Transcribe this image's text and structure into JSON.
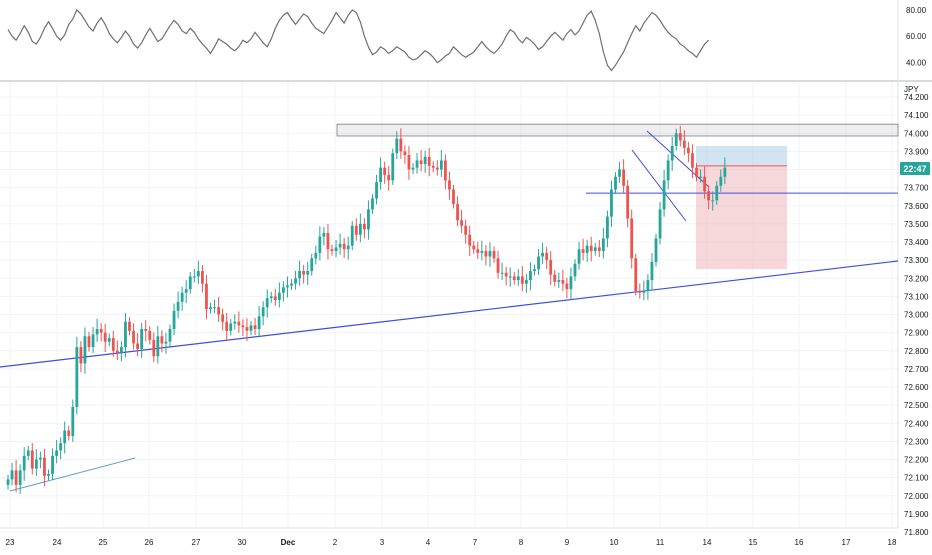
{
  "currency": "JPY",
  "price_badge": {
    "text": "22:47",
    "color": "#26a69a"
  },
  "colors": {
    "up": "#26a69a",
    "down": "#ef5350",
    "trend": "#3f4ce0",
    "oscillator": "#6f6f6f",
    "zone": "#787b86",
    "target": "#9cc3e0",
    "stop": "#efb6bb"
  },
  "chart_data": [
    {
      "type": "line",
      "role": "oscillator",
      "y_ticks": [
        "80.00",
        "60.00",
        "40.00"
      ],
      "ylim": [
        26,
        86
      ],
      "values": [
        65,
        60,
        57,
        62,
        68,
        63,
        56,
        54,
        59,
        66,
        71,
        66,
        60,
        57,
        61,
        69,
        73,
        80,
        77,
        72,
        67,
        64,
        70,
        74,
        69,
        62,
        58,
        55,
        59,
        64,
        60,
        54,
        51,
        55,
        61,
        66,
        61,
        56,
        58,
        63,
        68,
        72,
        69,
        64,
        62,
        66,
        63,
        58,
        54,
        51,
        47,
        52,
        58,
        56,
        54,
        51,
        49,
        52,
        57,
        55,
        58,
        63,
        59,
        55,
        52,
        58,
        66,
        72,
        76,
        78,
        73,
        69,
        73,
        77,
        75,
        70,
        66,
        64,
        62,
        67,
        72,
        78,
        74,
        70,
        76,
        80,
        78,
        71,
        60,
        52,
        46,
        48,
        52,
        50,
        47,
        49,
        52,
        50,
        48,
        44,
        42,
        43,
        46,
        49,
        47,
        44,
        40,
        42,
        45,
        47,
        52,
        49,
        46,
        44,
        46,
        48,
        52,
        56,
        52,
        49,
        47,
        50,
        54,
        60,
        65,
        63,
        58,
        55,
        59,
        57,
        54,
        50,
        52,
        56,
        60,
        63,
        60,
        57,
        62,
        65,
        61,
        64,
        70,
        76,
        79,
        72,
        62,
        48,
        38,
        34,
        38,
        43,
        48,
        55,
        62,
        68,
        64,
        70,
        74,
        78,
        76,
        72,
        67,
        63,
        60,
        58,
        54,
        52,
        49,
        47,
        44,
        49,
        54,
        57
      ]
    },
    {
      "type": "candlestick",
      "role": "price",
      "y_ticks": [
        "74.200",
        "74.100",
        "74.000",
        "73.900",
        "73.800",
        "73.700",
        "73.600",
        "73.500",
        "73.400",
        "73.300",
        "73.200",
        "73.100",
        "73.000",
        "72.900",
        "72.800",
        "72.700",
        "72.600",
        "72.500",
        "72.400",
        "72.300",
        "72.200",
        "72.100",
        "72.000",
        "71.900",
        "71.800"
      ],
      "ylim": [
        71.8,
        74.2
      ],
      "x_ticks": [
        "23",
        "24",
        "25",
        "26",
        "27",
        "30",
        "Dec",
        "2",
        "3",
        "4",
        "7",
        "8",
        "9",
        "10",
        "11",
        "14",
        "15",
        "16",
        "17",
        "18"
      ],
      "closes": [
        72.09,
        72.14,
        72.06,
        72.14,
        72.22,
        72.25,
        72.15,
        72.2,
        72.21,
        72.11,
        72.12,
        72.22,
        72.25,
        72.29,
        72.36,
        72.33,
        72.49,
        72.82,
        72.73,
        72.88,
        72.82,
        72.89,
        72.92,
        72.9,
        72.85,
        72.87,
        72.8,
        72.79,
        72.82,
        72.96,
        72.91,
        72.84,
        72.81,
        72.92,
        72.91,
        72.86,
        72.77,
        72.88,
        72.84,
        72.85,
        72.92,
        73.02,
        73.07,
        73.12,
        73.14,
        73.21,
        73.21,
        73.24,
        73.17,
        73.03,
        73.04,
        73.04,
        73.0,
        72.96,
        72.91,
        72.95,
        72.96,
        72.94,
        72.93,
        72.91,
        72.94,
        72.92,
        72.99,
        73.04,
        73.09,
        73.1,
        73.08,
        73.12,
        73.15,
        73.16,
        73.17,
        73.2,
        73.24,
        73.22,
        73.24,
        73.31,
        73.34,
        73.43,
        73.45,
        73.36,
        73.35,
        73.37,
        73.39,
        73.36,
        73.38,
        73.49,
        73.44,
        73.5,
        73.47,
        73.58,
        73.64,
        73.73,
        73.81,
        73.77,
        73.74,
        73.89,
        73.97,
        73.9,
        73.88,
        73.8,
        73.81,
        73.85,
        73.83,
        73.87,
        73.82,
        73.81,
        73.8,
        73.85,
        73.74,
        73.69,
        73.61,
        73.52,
        73.49,
        73.44,
        73.38,
        73.36,
        73.34,
        73.35,
        73.32,
        73.35,
        73.31,
        73.23,
        73.23,
        73.21,
        73.21,
        73.19,
        73.21,
        73.17,
        73.19,
        73.24,
        73.25,
        73.32,
        73.34,
        73.3,
        73.22,
        73.18,
        73.19,
        73.17,
        73.14,
        73.21,
        73.28,
        73.36,
        73.34,
        73.38,
        73.35,
        73.37,
        73.35,
        73.42,
        73.54,
        73.69,
        73.76,
        73.8,
        73.71,
        73.53,
        73.31,
        73.13,
        73.12,
        73.13,
        73.19,
        73.29,
        73.42,
        73.58,
        73.74,
        73.85,
        73.93,
        74.0,
        73.96,
        73.92,
        73.89,
        73.81,
        73.76,
        73.76,
        73.68,
        73.63,
        73.63,
        73.71,
        73.76,
        73.81
      ]
    }
  ]
}
